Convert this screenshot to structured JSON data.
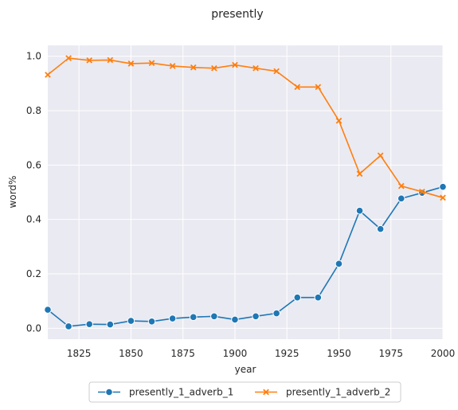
{
  "chart_data": {
    "type": "line",
    "title": "presently",
    "xlabel": "year",
    "ylabel": "word%",
    "xlim": [
      1810,
      2000
    ],
    "ylim": [
      -0.04,
      1.04
    ],
    "x_ticks": [
      1825,
      1850,
      1875,
      1900,
      1925,
      1950,
      1975,
      2000
    ],
    "y_ticks": [
      0.0,
      0.2,
      0.4,
      0.6,
      0.8,
      1.0
    ],
    "x_tick_labels": [
      "1825",
      "1850",
      "1875",
      "1900",
      "1925",
      "1950",
      "1975",
      "2000"
    ],
    "y_tick_labels": [
      "0.0",
      "0.2",
      "0.4",
      "0.6",
      "0.8",
      "1.0"
    ],
    "grid": true,
    "legend_position": "bottom-center",
    "x": [
      1810,
      1820,
      1830,
      1840,
      1850,
      1860,
      1870,
      1880,
      1890,
      1900,
      1910,
      1920,
      1930,
      1940,
      1950,
      1960,
      1970,
      1980,
      1990,
      2000
    ],
    "series": [
      {
        "name": "presently_1_adverb_1",
        "color": "#1f77b4",
        "marker": "circle",
        "values": [
          0.068,
          0.007,
          0.015,
          0.014,
          0.027,
          0.025,
          0.036,
          0.041,
          0.044,
          0.032,
          0.044,
          0.055,
          0.113,
          0.113,
          0.237,
          0.432,
          0.365,
          0.477,
          0.498,
          0.52
        ]
      },
      {
        "name": "presently_1_adverb_2",
        "color": "#ff7f0e",
        "marker": "x",
        "values": [
          0.932,
          0.993,
          0.985,
          0.986,
          0.973,
          0.975,
          0.964,
          0.959,
          0.956,
          0.968,
          0.956,
          0.945,
          0.887,
          0.887,
          0.763,
          0.568,
          0.635,
          0.523,
          0.502,
          0.48
        ]
      }
    ]
  }
}
